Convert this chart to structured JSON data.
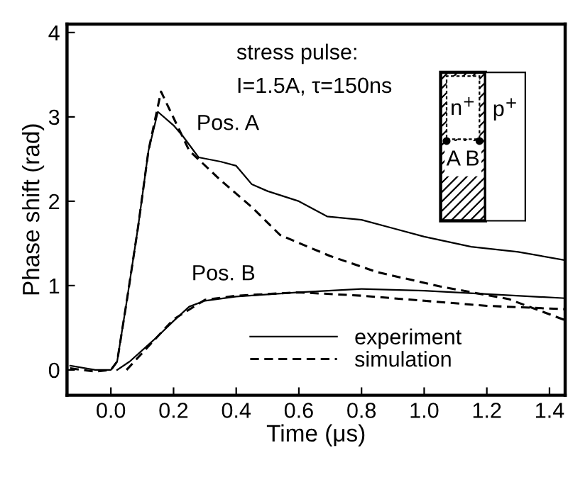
{
  "chart_data": {
    "type": "line",
    "xlabel": "Time (μs)",
    "ylabel": "Phase shift (rad)",
    "xlim": [
      -0.14,
      1.45
    ],
    "ylim": [
      -0.3,
      4.1
    ],
    "xticks": [
      {
        "value": 0,
        "label": "0.0"
      },
      0.2,
      0.4,
      0.6,
      0.8,
      {
        "value": 1,
        "label": "1.0"
      },
      1.2,
      1.4
    ],
    "yticks": [
      0,
      1,
      2,
      3,
      4
    ],
    "grid": false,
    "legend": "bottom",
    "marker": "none",
    "series": [
      {
        "name": "experiment",
        "color": "#000000",
        "line_style": "solid",
        "x": [
          -0.13,
          -0.05,
          0.0,
          0.02,
          0.05,
          0.087,
          0.12,
          0.15,
          0.2,
          0.23,
          0.28,
          0.35,
          0.4,
          0.45,
          0.5,
          0.6,
          0.69,
          0.8,
          0.9,
          1.0,
          1.15,
          1.3,
          1.45
        ],
        "values": [
          0.05,
          0.0,
          0.0,
          0.1,
          0.8,
          1.7,
          2.6,
          3.06,
          2.9,
          2.77,
          2.52,
          2.47,
          2.42,
          2.2,
          2.12,
          2.0,
          1.82,
          1.78,
          1.68,
          1.58,
          1.46,
          1.4,
          1.3
        ]
      },
      {
        "name": "simulation",
        "color": "#000000",
        "line_style": "dashed",
        "x": [
          -0.13,
          -0.05,
          0.0,
          0.02,
          0.05,
          0.087,
          0.12,
          0.16,
          0.25,
          0.35,
          0.45,
          0.54,
          0.61,
          0.7,
          0.85,
          1.05,
          1.27,
          1.45
        ],
        "values": [
          0.02,
          -0.02,
          0.0,
          0.1,
          0.8,
          1.7,
          2.6,
          3.3,
          2.6,
          2.25,
          1.93,
          1.6,
          1.49,
          1.35,
          1.16,
          0.99,
          0.84,
          0.59
        ]
      },
      {
        "color": "#000000",
        "line_style": "solid",
        "x": [
          0.02,
          0.06,
          0.15,
          0.2,
          0.25,
          0.3,
          0.4,
          0.6,
          0.8,
          1.0,
          1.2,
          1.45
        ],
        "values": [
          0.0,
          0.1,
          0.4,
          0.58,
          0.75,
          0.82,
          0.87,
          0.92,
          0.96,
          0.94,
          0.9,
          0.85
        ]
      },
      {
        "color": "#000000",
        "line_style": "dashed",
        "x": [
          0.05,
          0.1,
          0.2,
          0.3,
          0.4,
          0.6,
          0.8,
          1.0,
          1.2,
          1.45
        ],
        "values": [
          0.0,
          0.2,
          0.6,
          0.83,
          0.88,
          0.92,
          0.88,
          0.82,
          0.76,
          0.72
        ]
      }
    ],
    "annotations": [
      "Pos. A",
      "Pos. B",
      "stress pulse:",
      "I=1.5A, τ=150ns",
      "n$^{+}$",
      "p$^{+}$",
      "A",
      "B"
    ]
  }
}
